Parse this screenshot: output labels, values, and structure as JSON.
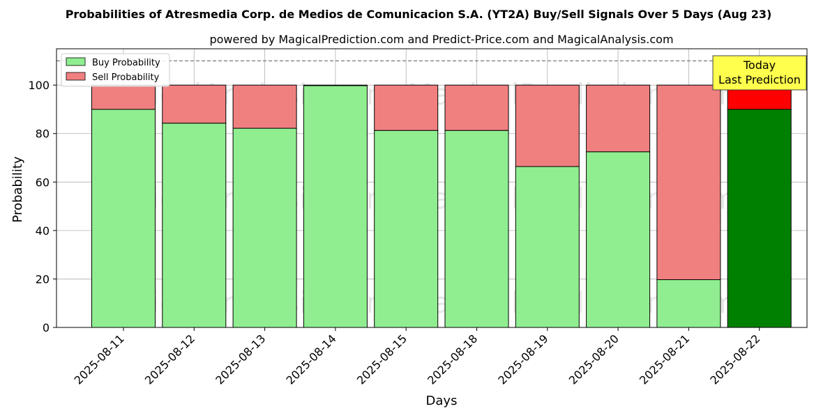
{
  "chart_data": {
    "type": "bar",
    "stacked": true,
    "title": "Probabilities of Atresmedia Corp. de Medios de Comunicacion S.A. (YT2A) Buy/Sell Signals Over 5 Days (Aug 23)",
    "subtitle": "powered by MagicalPrediction.com and Predict-Price.com and MagicalAnalysis.com",
    "xlabel": "Days",
    "ylabel": "Probability",
    "ylim": [
      0,
      115
    ],
    "yticks": [
      0,
      20,
      40,
      60,
      80,
      100
    ],
    "categories": [
      "2025-08-11",
      "2025-08-12",
      "2025-08-13",
      "2025-08-14",
      "2025-08-15",
      "2025-08-18",
      "2025-08-19",
      "2025-08-20",
      "2025-08-21",
      "2025-08-22"
    ],
    "series": [
      {
        "name": "Buy Probability",
        "values": [
          90,
          84.3,
          82.2,
          99.8,
          81.3,
          81.3,
          66.4,
          72.5,
          19.7,
          90
        ]
      },
      {
        "name": "Sell Probability",
        "values": [
          10,
          15.7,
          17.8,
          0.2,
          18.7,
          18.7,
          33.6,
          27.5,
          80.3,
          10
        ]
      }
    ],
    "colors": {
      "buy": "#90ee90",
      "sell": "#f08080",
      "buy_highlight": "#008000",
      "sell_highlight": "#ff0000",
      "annotation_bg": "#ffff4d"
    },
    "highlight_index": 9,
    "reference_line": 110,
    "grid": true,
    "legend_position": "top-left",
    "annotation": {
      "line1": "Today",
      "line2": "Last Prediction"
    },
    "watermarks": [
      "MagicalAnalysis.com",
      "MagicalPrediction.com"
    ]
  }
}
